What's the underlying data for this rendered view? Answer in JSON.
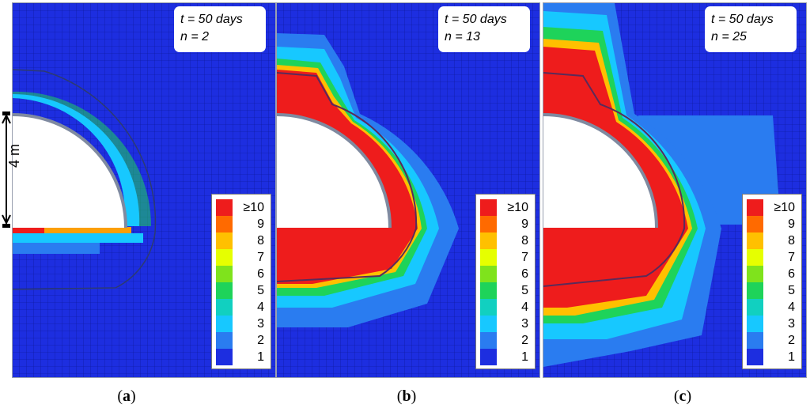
{
  "panels": [
    {
      "id": "a",
      "time_label": "t = 50 days",
      "n_label": "n = 2",
      "caption": "a"
    },
    {
      "id": "b",
      "time_label": "t = 50 days",
      "n_label": "n = 13",
      "caption": "b"
    },
    {
      "id": "c",
      "time_label": "t = 50 days",
      "n_label": "n = 25",
      "caption": "c"
    }
  ],
  "dimension": {
    "label": "4 m"
  },
  "legend": {
    "items": [
      {
        "label": "≥10",
        "color": "#ee1c1c"
      },
      {
        "label": "9",
        "color": "#ff6a00"
      },
      {
        "label": "8",
        "color": "#ffc000"
      },
      {
        "label": "7",
        "color": "#e6ff00"
      },
      {
        "label": "6",
        "color": "#7fe31c"
      },
      {
        "label": "5",
        "color": "#1ed35a"
      },
      {
        "label": "4",
        "color": "#11d0c0"
      },
      {
        "label": "3",
        "color": "#17c8ff"
      },
      {
        "label": "2",
        "color": "#2a7cf0"
      },
      {
        "label": "1",
        "color": "#1d2ee0"
      }
    ]
  },
  "colors": {
    "background_mesh": "#1d2ee0",
    "opening": "#ffffff",
    "lining": "#7f8aa0"
  }
}
